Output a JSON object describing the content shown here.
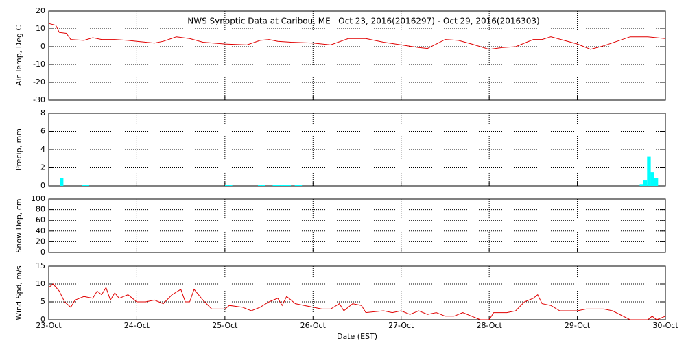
{
  "chart_data": [
    {
      "type": "line",
      "title": "NWS Synoptic Data at Caribou, ME   Oct 23, 2016(2016297) - Oct 29, 2016(2016303)",
      "y_label": "Air Temp, Deg C",
      "color": "#e00000",
      "x": [
        0,
        0.08,
        0.12,
        0.2,
        0.25,
        0.4,
        0.5,
        0.6,
        0.75,
        0.9,
        1.0,
        1.2,
        1.3,
        1.45,
        1.6,
        1.75,
        2.0,
        2.25,
        2.4,
        2.5,
        2.6,
        2.75,
        3.0,
        3.2,
        3.4,
        3.6,
        3.8,
        4.0,
        4.2,
        4.3,
        4.5,
        4.65,
        4.8,
        5.0,
        5.15,
        5.3,
        5.5,
        5.6,
        5.7,
        5.85,
        6.0,
        6.15,
        6.3,
        6.45,
        6.6,
        6.8,
        7.0
      ],
      "values": [
        13,
        12,
        8,
        7.5,
        4,
        3.5,
        5,
        4,
        4,
        3.5,
        3,
        2,
        3,
        5.5,
        4.5,
        2.5,
        1.5,
        1,
        3.5,
        4,
        3,
        2.5,
        2,
        1,
        4.5,
        4.5,
        2.5,
        1,
        -0.5,
        -1,
        4,
        3.5,
        1.5,
        -1.5,
        -0.5,
        0,
        4,
        4,
        5.5,
        3.5,
        1.5,
        -1.5,
        0.5,
        3,
        5.5,
        5.5,
        4.5
      ],
      "xlim": [
        0,
        7
      ],
      "xticks": [
        0,
        1,
        2,
        3,
        4,
        5,
        6,
        7
      ],
      "ylim": [
        -30,
        20
      ],
      "yticks": [
        -30,
        -20,
        -10,
        0,
        10,
        20
      ],
      "grid": true
    },
    {
      "type": "bar",
      "y_label": "Precip, mm",
      "color": "#00ffff",
      "x": [
        0.125,
        0.375,
        0.417,
        2.0,
        2.042,
        2.375,
        2.417,
        2.542,
        2.583,
        2.625,
        2.667,
        2.708,
        2.792,
        2.833,
        6.708,
        6.75,
        6.792,
        6.833,
        6.875
      ],
      "values": [
        0.9,
        0.1,
        0.1,
        0.1,
        0.1,
        0.1,
        0.1,
        0.1,
        0.1,
        0.1,
        0.1,
        0.1,
        0.1,
        0.1,
        0.2,
        0.6,
        3.2,
        1.5,
        0.9
      ],
      "xlim": [
        0,
        7
      ],
      "xticks": [
        0,
        1,
        2,
        3,
        4,
        5,
        6,
        7
      ],
      "ylim": [
        0,
        8
      ],
      "yticks": [
        0,
        2,
        4,
        6,
        8
      ],
      "grid": true
    },
    {
      "type": "line",
      "y_label": "Snow Dep, cm",
      "color": "#e00000",
      "x": [],
      "values": [],
      "xlim": [
        0,
        7
      ],
      "xticks": [
        0,
        1,
        2,
        3,
        4,
        5,
        6,
        7
      ],
      "ylim": [
        0,
        100
      ],
      "yticks": [
        0,
        20,
        40,
        60,
        80,
        100
      ],
      "grid": true
    },
    {
      "type": "line",
      "y_label": "Wind Spd, m/s",
      "x_label": "Date (EST)",
      "color": "#e00000",
      "x": [
        0,
        0.05,
        0.12,
        0.18,
        0.25,
        0.3,
        0.4,
        0.5,
        0.55,
        0.6,
        0.65,
        0.7,
        0.75,
        0.8,
        0.9,
        0.95,
        1.0,
        1.1,
        1.2,
        1.3,
        1.4,
        1.5,
        1.55,
        1.6,
        1.65,
        1.75,
        1.85,
        2.0,
        2.05,
        2.2,
        2.3,
        2.4,
        2.5,
        2.6,
        2.65,
        2.7,
        2.8,
        2.9,
        3.0,
        3.1,
        3.2,
        3.3,
        3.35,
        3.45,
        3.55,
        3.6,
        3.8,
        3.9,
        4.0,
        4.1,
        4.2,
        4.3,
        4.4,
        4.5,
        4.6,
        4.7,
        4.8,
        4.9,
        5.0,
        5.05,
        5.2,
        5.3,
        5.4,
        5.5,
        5.55,
        5.6,
        5.7,
        5.8,
        6.0,
        6.1,
        6.2,
        6.3,
        6.4,
        6.6,
        6.8,
        6.85,
        6.9,
        7.0
      ],
      "values": [
        9,
        10,
        8,
        5,
        3.5,
        5.5,
        6.5,
        6,
        8,
        7,
        9,
        5.5,
        7.5,
        6,
        7,
        6,
        5,
        5,
        5.5,
        4.5,
        7,
        8.5,
        5,
        5,
        8.5,
        5.5,
        3,
        3,
        4,
        3.5,
        2.5,
        3.5,
        5,
        6,
        4,
        6.5,
        4.5,
        4,
        3.5,
        3,
        3,
        4.5,
        2.5,
        4.5,
        4,
        2,
        2.5,
        2,
        2.5,
        1.5,
        2.5,
        1.5,
        2,
        1,
        1,
        2,
        1,
        0,
        0,
        2,
        2,
        2.5,
        5,
        6,
        7,
        4.5,
        4,
        2.5,
        2.5,
        3,
        3,
        3,
        2.5,
        0,
        0,
        1,
        0,
        1
      ],
      "xlim": [
        0,
        7
      ],
      "xticks": [
        {
          "value": 0,
          "label": "23-Oct"
        },
        {
          "value": 1,
          "label": "24-Oct"
        },
        {
          "value": 2,
          "label": "25-Oct"
        },
        {
          "value": 3,
          "label": "26-Oct"
        },
        {
          "value": 4,
          "label": "27-Oct"
        },
        {
          "value": 5,
          "label": "28-Oct"
        },
        {
          "value": 6,
          "label": "29-Oct"
        },
        {
          "value": 7,
          "label": "30-Oct"
        }
      ],
      "ylim": [
        0,
        15
      ],
      "yticks": [
        0,
        5,
        10,
        15
      ],
      "grid": true
    }
  ]
}
